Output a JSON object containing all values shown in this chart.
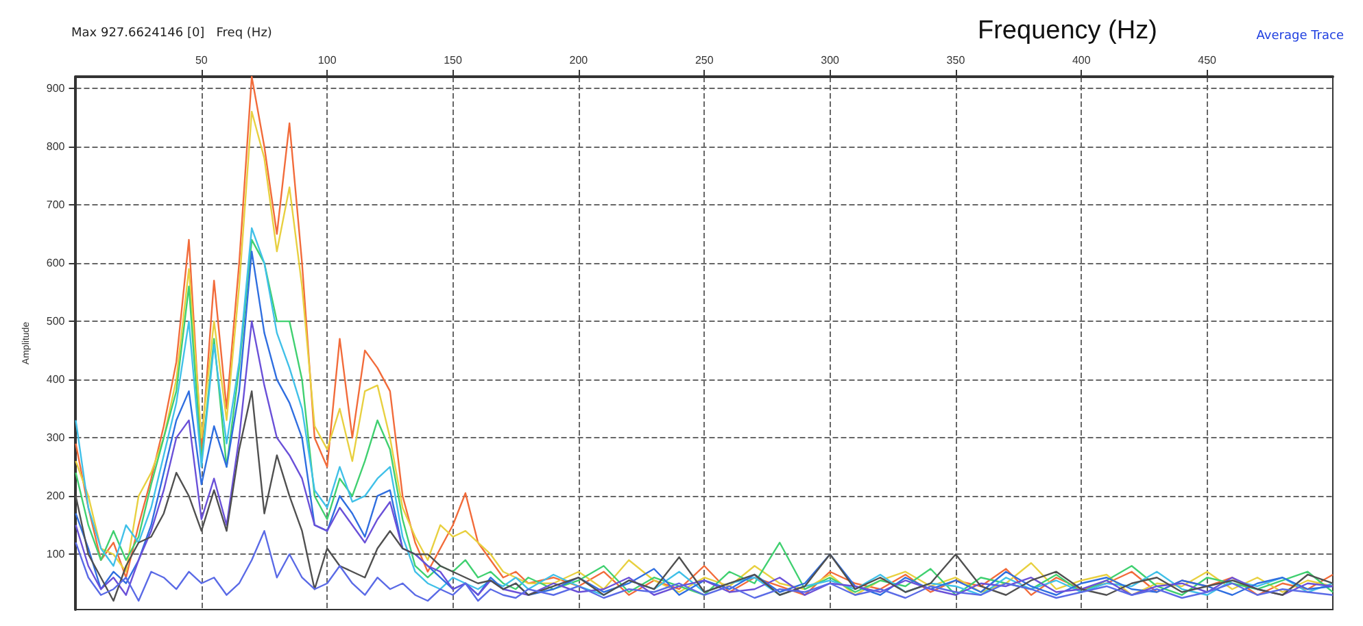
{
  "chart_data": {
    "type": "line",
    "title": "Frequency (Hz)",
    "xlabel": "Freq (Hz)",
    "ylabel": "Amplitude",
    "annotations": [
      "Max 927.6624146 [0]",
      "Average Trace"
    ],
    "x": [
      0,
      5,
      10,
      15,
      20,
      25,
      30,
      35,
      40,
      45,
      50,
      55,
      60,
      65,
      70,
      75,
      80,
      85,
      90,
      95,
      100,
      105,
      110,
      115,
      120,
      125,
      130,
      135,
      140,
      145,
      150,
      155,
      160,
      165,
      170,
      175,
      180,
      190,
      200,
      210,
      220,
      230,
      240,
      250,
      260,
      270,
      280,
      290,
      300,
      310,
      320,
      330,
      340,
      350,
      360,
      370,
      380,
      390,
      400,
      410,
      420,
      430,
      440,
      450,
      460,
      470,
      480,
      490,
      500
    ],
    "xlim": [
      0,
      500
    ],
    "xticks": [
      50,
      100,
      150,
      200,
      250,
      300,
      350,
      400,
      450
    ],
    "ylim": [
      5,
      920
    ],
    "yticks": [
      100,
      200,
      300,
      400,
      500,
      600,
      700,
      800,
      900
    ],
    "grid": true,
    "marker": "none",
    "series": [
      {
        "color": "#f26b3a",
        "values": [
          290,
          180,
          90,
          120,
          60,
          150,
          230,
          320,
          430,
          640,
          280,
          570,
          350,
          600,
          920,
          800,
          650,
          840,
          600,
          300,
          250,
          470,
          300,
          450,
          420,
          380,
          200,
          120,
          70,
          110,
          150,
          205,
          120,
          90,
          60,
          70,
          50,
          60,
          45,
          70,
          30,
          55,
          40,
          80,
          35,
          60,
          45,
          30,
          70,
          50,
          40,
          65,
          35,
          55,
          45,
          75,
          30,
          60,
          40,
          50,
          70,
          35,
          55,
          45,
          60,
          30,
          50,
          40,
          65
        ]
      },
      {
        "color": "#e8d040",
        "values": [
          260,
          200,
          110,
          100,
          70,
          200,
          240,
          300,
          400,
          590,
          300,
          500,
          330,
          560,
          860,
          780,
          620,
          730,
          560,
          320,
          280,
          350,
          260,
          380,
          390,
          300,
          180,
          130,
          90,
          150,
          130,
          140,
          120,
          100,
          70,
          60,
          50,
          50,
          70,
          40,
          90,
          55,
          35,
          60,
          45,
          80,
          50,
          40,
          65,
          30,
          55,
          70,
          45,
          60,
          35,
          50,
          85,
          40,
          55,
          65,
          30,
          50,
          45,
          70,
          40,
          60,
          35,
          55,
          45
        ]
      },
      {
        "color": "#40d070",
        "values": [
          240,
          150,
          90,
          140,
          90,
          130,
          220,
          300,
          380,
          560,
          260,
          470,
          250,
          420,
          640,
          600,
          500,
          500,
          400,
          200,
          160,
          230,
          200,
          260,
          330,
          280,
          160,
          80,
          60,
          80,
          70,
          90,
          60,
          70,
          50,
          40,
          60,
          40,
          55,
          80,
          35,
          60,
          45,
          30,
          70,
          50,
          120,
          40,
          60,
          35,
          55,
          45,
          75,
          30,
          60,
          50,
          40,
          65,
          35,
          55,
          80,
          45,
          30,
          60,
          50,
          40,
          55,
          70,
          35
        ]
      },
      {
        "color": "#40c0e8",
        "values": [
          330,
          180,
          110,
          80,
          150,
          120,
          180,
          270,
          360,
          500,
          250,
          460,
          290,
          430,
          660,
          600,
          480,
          420,
          350,
          210,
          180,
          250,
          190,
          200,
          230,
          250,
          130,
          70,
          50,
          40,
          60,
          50,
          40,
          55,
          45,
          60,
          40,
          65,
          45,
          30,
          55,
          40,
          70,
          35,
          50,
          60,
          30,
          45,
          55,
          40,
          65,
          35,
          50,
          45,
          30,
          60,
          40,
          55,
          35,
          50,
          45,
          70,
          40,
          30,
          55,
          45,
          60,
          35,
          50
        ]
      },
      {
        "color": "#2f6ee0",
        "values": [
          170,
          110,
          40,
          70,
          50,
          90,
          150,
          240,
          330,
          380,
          220,
          320,
          250,
          380,
          620,
          480,
          400,
          360,
          300,
          150,
          140,
          200,
          170,
          130,
          200,
          210,
          110,
          100,
          80,
          60,
          40,
          50,
          30,
          60,
          40,
          50,
          30,
          40,
          60,
          35,
          50,
          75,
          30,
          55,
          40,
          65,
          35,
          50,
          100,
          45,
          30,
          60,
          40,
          55,
          35,
          70,
          45,
          30,
          50,
          60,
          40,
          35,
          55,
          45,
          30,
          50,
          60,
          40,
          45
        ]
      },
      {
        "color": "#6a50d8",
        "values": [
          150,
          80,
          40,
          60,
          30,
          90,
          140,
          210,
          300,
          330,
          160,
          230,
          150,
          300,
          500,
          390,
          300,
          270,
          230,
          150,
          140,
          180,
          150,
          120,
          160,
          190,
          110,
          100,
          80,
          70,
          40,
          50,
          30,
          55,
          40,
          35,
          30,
          50,
          35,
          40,
          60,
          30,
          45,
          55,
          35,
          40,
          60,
          30,
          50,
          45,
          35,
          55,
          40,
          30,
          50,
          45,
          60,
          35,
          40,
          55,
          30,
          45,
          50,
          35,
          60,
          40,
          30,
          50,
          45
        ]
      },
      {
        "color": "#505050",
        "values": [
          200,
          100,
          60,
          20,
          80,
          120,
          130,
          170,
          240,
          200,
          140,
          210,
          140,
          280,
          380,
          170,
          270,
          200,
          140,
          40,
          110,
          80,
          70,
          60,
          110,
          140,
          110,
          100,
          100,
          80,
          70,
          60,
          50,
          55,
          40,
          50,
          30,
          45,
          60,
          30,
          55,
          40,
          95,
          35,
          50,
          65,
          30,
          45,
          100,
          40,
          60,
          35,
          50,
          100,
          45,
          30,
          55,
          70,
          40,
          30,
          50,
          60,
          35,
          45,
          55,
          40,
          30,
          65,
          50
        ]
      },
      {
        "color": "#5a6ae6",
        "values": [
          120,
          60,
          30,
          40,
          60,
          20,
          70,
          60,
          40,
          70,
          50,
          60,
          30,
          50,
          90,
          140,
          60,
          100,
          60,
          40,
          50,
          80,
          50,
          30,
          60,
          40,
          50,
          30,
          20,
          40,
          30,
          50,
          20,
          40,
          30,
          25,
          40,
          30,
          45,
          25,
          40,
          35,
          50,
          30,
          45,
          25,
          40,
          35,
          50,
          30,
          40,
          25,
          45,
          35,
          30,
          50,
          40,
          25,
          35,
          45,
          30,
          40,
          25,
          35,
          50,
          30,
          40,
          35,
          30
        ]
      }
    ]
  }
}
